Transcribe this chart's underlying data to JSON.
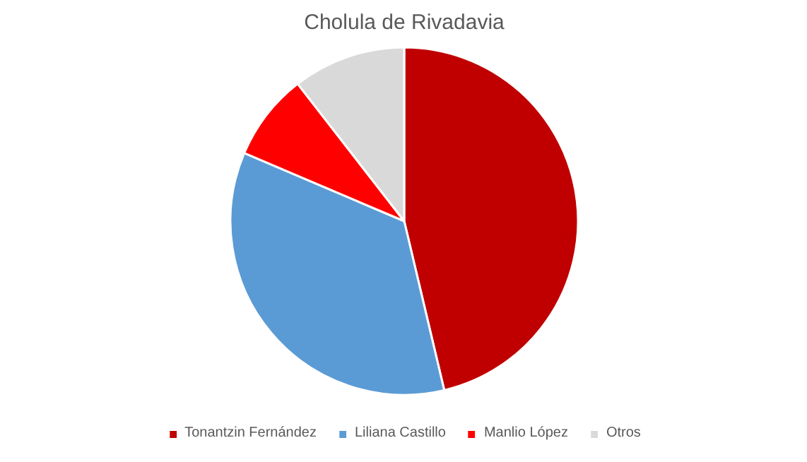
{
  "chart_data": {
    "type": "pie",
    "title": "Cholula de Rivadavia",
    "categories": [
      "Tonantzin Fernández",
      "Liliana Castillo",
      "Manlio López",
      "Otros"
    ],
    "values": [
      46.3,
      35.1,
      8.1,
      10.5
    ],
    "colors": [
      "#c00000",
      "#5b9bd5",
      "#ff0000",
      "#d9d9d9"
    ],
    "legend": "bottom"
  }
}
